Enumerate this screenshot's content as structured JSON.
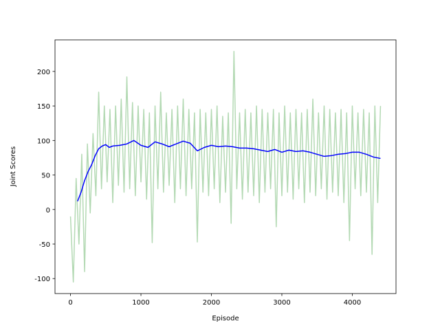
{
  "chart_data": {
    "type": "line",
    "xlabel": "Episode",
    "ylabel": "Joint Scores",
    "xlim": [
      -220,
      4620
    ],
    "ylim": [
      -121.7,
      245.7
    ],
    "xticks": [
      0,
      1000,
      2000,
      3000,
      4000
    ],
    "yticks": [
      -100,
      -50,
      0,
      50,
      100,
      150,
      200
    ],
    "series": [
      {
        "color": "#b3d9b3",
        "x": [
          0,
          40,
          80,
          120,
          160,
          200,
          240,
          280,
          320,
          360,
          400,
          440,
          480,
          520,
          560,
          600,
          640,
          680,
          720,
          760,
          800,
          840,
          880,
          920,
          960,
          1000,
          1040,
          1080,
          1120,
          1160,
          1200,
          1240,
          1280,
          1320,
          1360,
          1400,
          1440,
          1480,
          1520,
          1560,
          1600,
          1640,
          1680,
          1720,
          1760,
          1800,
          1840,
          1880,
          1920,
          1960,
          2000,
          2040,
          2080,
          2120,
          2160,
          2200,
          2240,
          2280,
          2320,
          2360,
          2400,
          2440,
          2480,
          2520,
          2560,
          2600,
          2640,
          2680,
          2720,
          2760,
          2800,
          2840,
          2880,
          2920,
          2960,
          3000,
          3040,
          3080,
          3120,
          3160,
          3200,
          3240,
          3280,
          3320,
          3360,
          3400,
          3440,
          3480,
          3520,
          3560,
          3600,
          3640,
          3680,
          3720,
          3760,
          3800,
          3840,
          3880,
          3920,
          3960,
          4000,
          4040,
          4080,
          4120,
          4160,
          4200,
          4240,
          4280,
          4320,
          4360,
          4400
        ],
        "values": [
          -10,
          -105,
          45,
          -50,
          80,
          -90,
          95,
          -5,
          110,
          20,
          170,
          30,
          150,
          40,
          145,
          10,
          150,
          35,
          160,
          25,
          192,
          30,
          155,
          20,
          150,
          40,
          145,
          15,
          140,
          -48,
          150,
          30,
          170,
          25,
          140,
          35,
          145,
          10,
          150,
          30,
          160,
          20,
          145,
          30,
          140,
          -47,
          145,
          25,
          140,
          20,
          145,
          30,
          150,
          10,
          135,
          25,
          140,
          -20,
          229,
          30,
          140,
          15,
          145,
          25,
          140,
          20,
          150,
          10,
          145,
          25,
          140,
          30,
          145,
          -25,
          140,
          20,
          150,
          25,
          140,
          15,
          145,
          30,
          140,
          10,
          145,
          25,
          160,
          20,
          140,
          30,
          150,
          15,
          145,
          25,
          140,
          20,
          145,
          10,
          140,
          -45,
          150,
          30,
          140,
          20,
          145,
          25,
          140,
          -65,
          150,
          10,
          150
        ]
      },
      {
        "color": "#0000ff",
        "x": [
          100,
          150,
          200,
          250,
          300,
          350,
          400,
          450,
          500,
          550,
          600,
          700,
          800,
          900,
          1000,
          1100,
          1200,
          1300,
          1400,
          1500,
          1600,
          1700,
          1800,
          1900,
          2000,
          2100,
          2200,
          2300,
          2400,
          2500,
          2600,
          2700,
          2800,
          2900,
          3000,
          3100,
          3200,
          3300,
          3400,
          3500,
          3600,
          3700,
          3800,
          3900,
          4000,
          4100,
          4200,
          4300,
          4400
        ],
        "values": [
          12,
          25,
          42,
          55,
          65,
          78,
          88,
          92,
          94,
          90,
          92,
          93,
          95,
          100,
          93,
          90,
          98,
          95,
          91,
          95,
          99,
          96,
          85,
          90,
          93,
          91,
          92,
          91,
          89,
          89,
          88,
          86,
          84,
          87,
          83,
          86,
          84,
          85,
          83,
          80,
          77,
          78,
          80,
          81,
          83,
          83,
          80,
          76,
          74
        ]
      }
    ]
  }
}
